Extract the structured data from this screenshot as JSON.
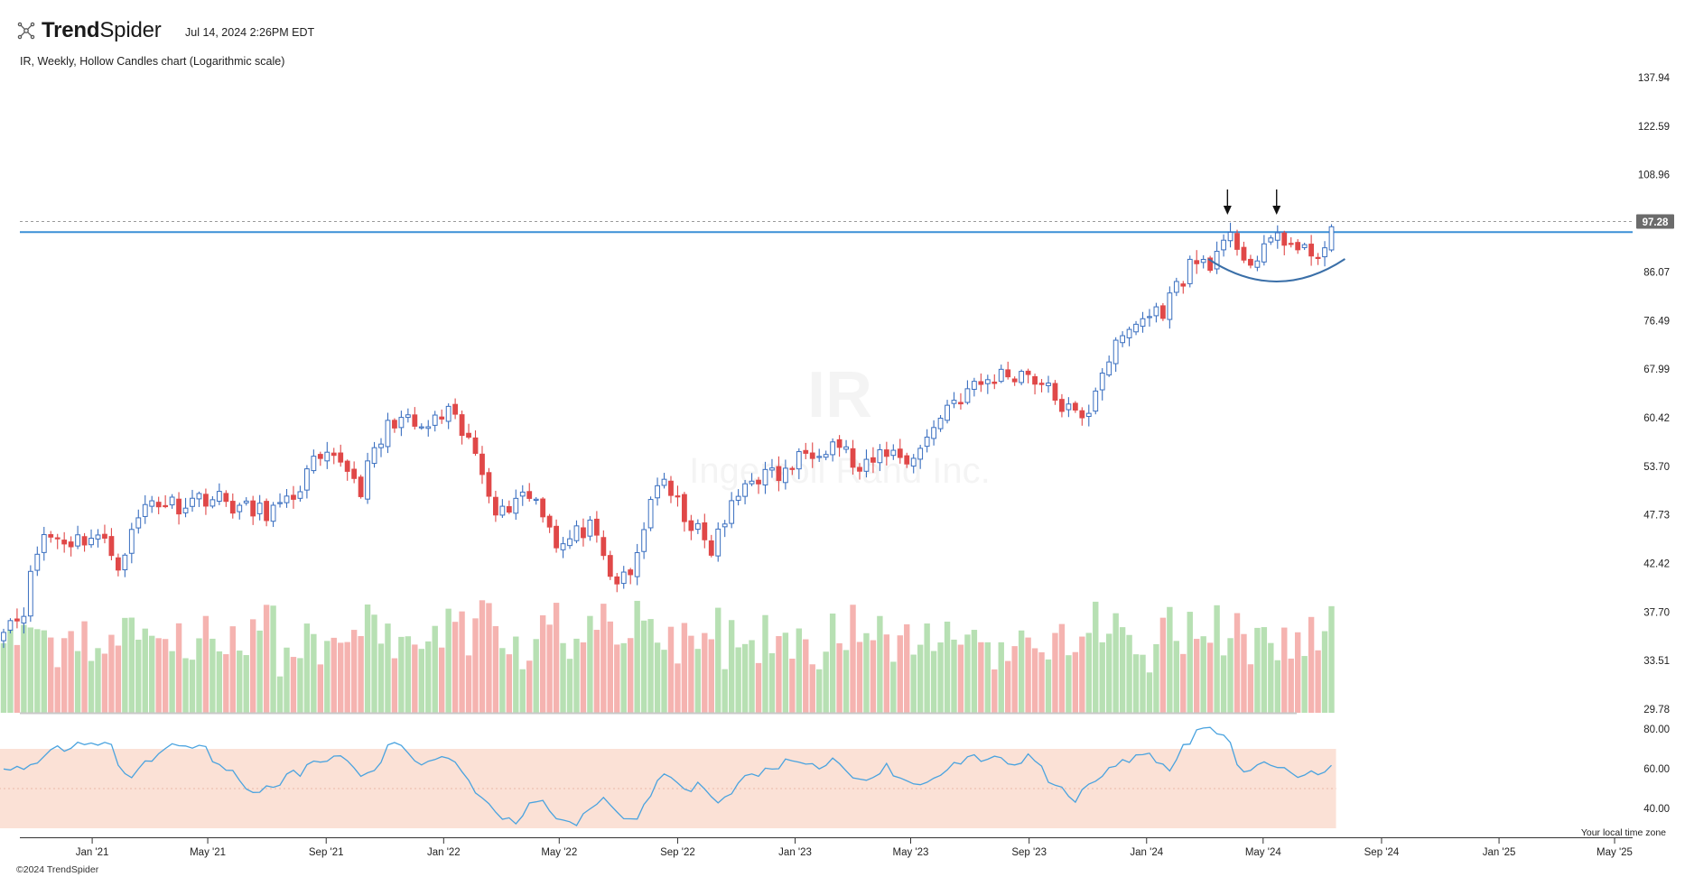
{
  "header": {
    "brand": {
      "strong": "Trend",
      "light": "Spider"
    },
    "timestamp": "Jul 14, 2024 2:26PM EDT",
    "subtitle": "IR, Weekly, Hollow Candles chart (Logarithmic scale)"
  },
  "footer": {
    "copyright": "©2024 TrendSpider",
    "timezone_note": "Your local time zone"
  },
  "watermark": {
    "ticker": "IR",
    "company": "Ingersoll Rand Inc."
  },
  "colors": {
    "up": "#3a6fc0",
    "down": "#e04848",
    "vol_up": "#b7e0b3",
    "vol_down": "#f5b3b0",
    "resistance": "#3a8fd6",
    "rsi_line": "#4aa3df",
    "rsi_band": "#fbe1d6",
    "price_tag_bg": "#6b6b6b",
    "arc": "#3a6fa8"
  },
  "chart_data": {
    "type": "candlestick",
    "scale": "log",
    "interval": "weekly",
    "y_ticks": [
      137.94,
      122.59,
      108.96,
      97.28,
      86.07,
      76.49,
      67.99,
      60.42,
      53.7,
      47.73,
      42.42,
      37.7,
      33.51,
      29.78
    ],
    "last_price_label": "97.28",
    "resistance_level": 94.8,
    "x_axis_labels": [
      "Jan '21",
      "May '21",
      "Sep '21",
      "Jan '22",
      "May '22",
      "Sep '22",
      "Jan '23",
      "May '23",
      "Sep '23",
      "Jan '24",
      "May '24",
      "Sep '24",
      "Jan '25",
      "May '25"
    ],
    "anchors": [
      [
        "2020-10-01",
        36.8
      ],
      [
        "2020-10-20",
        37.4
      ],
      [
        "2020-11-10",
        45.5
      ],
      [
        "2020-12-10",
        44.8
      ],
      [
        "2021-01-05",
        45.5
      ],
      [
        "2021-01-29",
        42.5
      ],
      [
        "2021-02-28",
        49.5
      ],
      [
        "2021-03-31",
        49.0
      ],
      [
        "2021-04-30",
        50.0
      ],
      [
        "2021-05-15",
        49.5
      ],
      [
        "2021-06-15",
        48.0
      ],
      [
        "2021-07-20",
        48.5
      ],
      [
        "2021-08-20",
        54.0
      ],
      [
        "2021-09-20",
        54.5
      ],
      [
        "2021-10-05",
        50.5
      ],
      [
        "2021-10-20",
        55.0
      ],
      [
        "2021-11-10",
        60.5
      ],
      [
        "2021-12-10",
        58.5
      ],
      [
        "2022-01-05",
        61.0
      ],
      [
        "2022-02-05",
        55.0
      ],
      [
        "2022-02-28",
        47.5
      ],
      [
        "2022-03-20",
        50.5
      ],
      [
        "2022-04-10",
        49.5
      ],
      [
        "2022-05-01",
        44.0
      ],
      [
        "2022-05-31",
        46.5
      ],
      [
        "2022-06-25",
        40.5
      ],
      [
        "2022-07-15",
        41.0
      ],
      [
        "2022-08-10",
        52.0
      ],
      [
        "2022-08-31",
        49.0
      ],
      [
        "2022-09-20",
        46.0
      ],
      [
        "2022-10-05",
        43.5
      ],
      [
        "2022-10-20",
        47.0
      ],
      [
        "2022-11-15",
        52.5
      ],
      [
        "2022-12-20",
        52.5
      ],
      [
        "2023-01-15",
        56.0
      ],
      [
        "2023-02-15",
        57.0
      ],
      [
        "2023-03-10",
        52.5
      ],
      [
        "2023-04-05",
        56.0
      ],
      [
        "2023-04-25",
        54.5
      ],
      [
        "2023-05-15",
        56.5
      ],
      [
        "2023-06-05",
        62.0
      ],
      [
        "2023-06-30",
        64.5
      ],
      [
        "2023-08-01",
        67.0
      ],
      [
        "2023-09-01",
        67.5
      ],
      [
        "2023-09-20",
        64.5
      ],
      [
        "2023-10-15",
        61.0
      ],
      [
        "2023-10-28",
        59.5
      ],
      [
        "2023-11-15",
        68.0
      ],
      [
        "2023-12-20",
        76.0
      ],
      [
        "2024-01-20",
        79.0
      ],
      [
        "2024-02-15",
        87.5
      ],
      [
        "2024-03-15",
        89.0
      ],
      [
        "2024-03-30",
        93.5
      ],
      [
        "2024-04-20",
        87.5
      ],
      [
        "2024-05-05",
        90.5
      ],
      [
        "2024-05-15",
        95.0
      ],
      [
        "2024-06-10",
        89.5
      ],
      [
        "2024-07-05",
        91.5
      ],
      [
        "2024-07-12",
        96.8
      ]
    ],
    "volume": {
      "series": "weekly volume",
      "relative_range": [
        0.3,
        1.0
      ]
    },
    "rsi": {
      "y_ticks": [
        80.0,
        60.0,
        40.0
      ],
      "band": [
        30,
        70
      ],
      "anchors": [
        [
          "2020-10-01",
          60
        ],
        [
          "2020-11-05",
          62
        ],
        [
          "2020-11-20",
          68
        ],
        [
          "2020-12-20",
          73
        ],
        [
          "2021-01-20",
          72
        ],
        [
          "2021-02-05",
          55
        ],
        [
          "2021-02-20",
          60
        ],
        [
          "2021-03-20",
          72
        ],
        [
          "2021-04-20",
          73
        ],
        [
          "2021-05-20",
          60
        ],
        [
          "2021-06-20",
          48
        ],
        [
          "2021-07-20",
          55
        ],
        [
          "2021-08-20",
          62
        ],
        [
          "2021-09-20",
          68
        ],
        [
          "2021-10-05",
          54
        ],
        [
          "2021-10-25",
          62
        ],
        [
          "2021-11-10",
          74
        ],
        [
          "2021-12-10",
          62
        ],
        [
          "2022-01-05",
          68
        ],
        [
          "2022-01-25",
          55
        ],
        [
          "2022-02-25",
          38
        ],
        [
          "2022-03-20",
          33
        ],
        [
          "2022-04-05",
          45
        ],
        [
          "2022-05-01",
          36
        ],
        [
          "2022-05-20",
          33
        ],
        [
          "2022-06-15",
          48
        ],
        [
          "2022-07-05",
          36
        ],
        [
          "2022-07-25",
          37
        ],
        [
          "2022-08-20",
          60
        ],
        [
          "2022-09-05",
          48
        ],
        [
          "2022-09-25",
          52
        ],
        [
          "2022-10-15",
          42
        ],
        [
          "2022-11-10",
          55
        ],
        [
          "2022-12-20",
          63
        ],
        [
          "2023-01-20",
          60
        ],
        [
          "2023-02-10",
          64
        ],
        [
          "2023-03-10",
          53
        ],
        [
          "2023-04-05",
          61
        ],
        [
          "2023-04-25",
          52
        ],
        [
          "2023-05-20",
          55
        ],
        [
          "2023-06-20",
          63
        ],
        [
          "2023-07-20",
          66
        ],
        [
          "2023-08-20",
          63
        ],
        [
          "2023-09-05",
          67
        ],
        [
          "2023-09-20",
          55
        ],
        [
          "2023-10-20",
          45
        ],
        [
          "2023-11-05",
          55
        ],
        [
          "2023-12-05",
          63
        ],
        [
          "2024-01-05",
          66
        ],
        [
          "2024-01-25",
          60
        ],
        [
          "2024-02-20",
          78
        ],
        [
          "2024-03-20",
          80
        ],
        [
          "2024-04-10",
          57
        ],
        [
          "2024-05-05",
          63
        ],
        [
          "2024-05-20",
          60
        ],
        [
          "2024-06-10",
          57
        ],
        [
          "2024-06-25",
          57
        ],
        [
          "2024-07-12",
          62
        ]
      ]
    },
    "annotations": {
      "arrows": [
        "2024-03-25",
        "2024-05-15"
      ],
      "cup_arc": {
        "start": "2024-03-05",
        "end": "2024-07-25"
      }
    }
  }
}
